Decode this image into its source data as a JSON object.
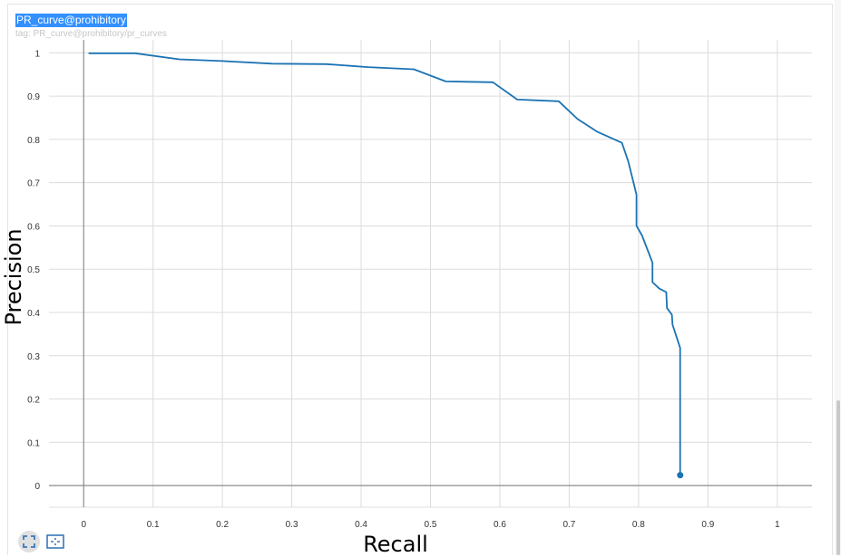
{
  "card": {
    "title": "PR_curve@prohibitory",
    "tag": "tag: PR_curve@prohibitory/pr_curves"
  },
  "toolbar": {
    "fit_icon": "fit-to-data-icon",
    "zoom_icon": "toggle-y-axis-icon"
  },
  "colors": {
    "line": "#1b73b3",
    "grid": "#dcdcdc",
    "axis": "#8c8c8c",
    "selection": "#3390ff"
  },
  "chart_data": {
    "type": "line",
    "xlabel": "Recall",
    "ylabel": "Precision",
    "xlim": [
      -0.05,
      1.05
    ],
    "ylim": [
      -0.05,
      1.03
    ],
    "xticks": [
      0,
      0.1,
      0.2,
      0.3,
      0.4,
      0.5,
      0.6,
      0.7,
      0.8,
      0.9,
      1
    ],
    "yticks": [
      0,
      0.1,
      0.2,
      0.3,
      0.4,
      0.5,
      0.6,
      0.7,
      0.8,
      0.9,
      1
    ],
    "xtick_labels": [
      "0",
      "0.1",
      "0.2",
      "0.3",
      "0.4",
      "0.5",
      "0.6",
      "0.7",
      "0.8",
      "0.9",
      "1"
    ],
    "ytick_labels": [
      "0",
      "0.1",
      "0.2",
      "0.3",
      "0.4",
      "0.5",
      "0.6",
      "0.7",
      "0.8",
      "0.9",
      "1"
    ],
    "grid": true,
    "series": [
      {
        "x": [
          0.007,
          0.074,
          0.138,
          0.2,
          0.272,
          0.35,
          0.41,
          0.476,
          0.522,
          0.59,
          0.625,
          0.685,
          0.712,
          0.74,
          0.776,
          0.785,
          0.797,
          0.797,
          0.805,
          0.82,
          0.82,
          0.83,
          0.84,
          0.841,
          0.848,
          0.849,
          0.86,
          0.86
        ],
        "y": [
          0.999,
          0.999,
          0.985,
          0.981,
          0.975,
          0.974,
          0.967,
          0.962,
          0.934,
          0.932,
          0.892,
          0.888,
          0.847,
          0.818,
          0.792,
          0.75,
          0.672,
          0.6,
          0.578,
          0.515,
          0.47,
          0.455,
          0.447,
          0.41,
          0.395,
          0.372,
          0.318,
          0.024
        ]
      }
    ]
  }
}
